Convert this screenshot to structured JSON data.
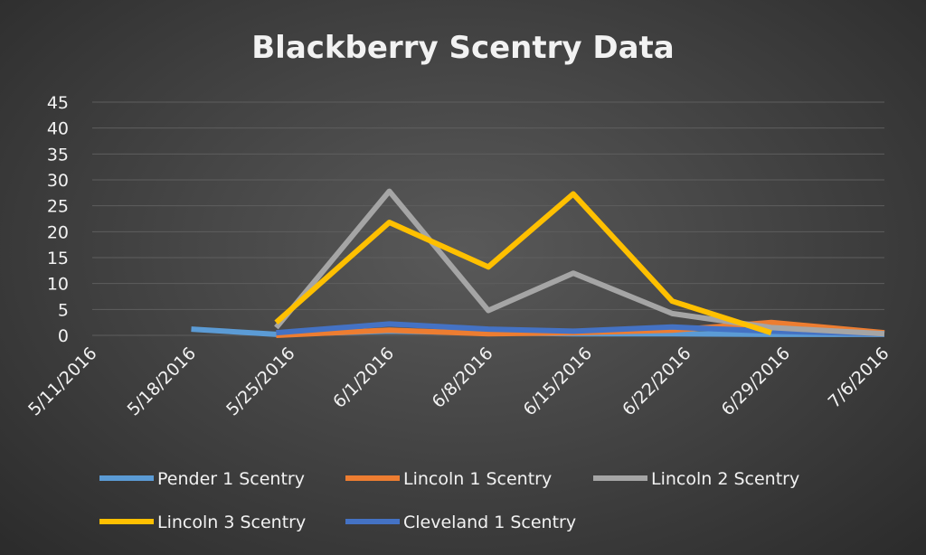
{
  "chart_data": {
    "type": "line",
    "title": "Blackberry Scentry Data",
    "xlabel": "",
    "ylabel": "",
    "ylim": [
      0,
      45
    ],
    "yticks": [
      0,
      5,
      10,
      15,
      20,
      25,
      30,
      35,
      40,
      45
    ],
    "xlim": [
      "2016-05-11",
      "2016-07-06"
    ],
    "xtick_labels": [
      "5/11/2016",
      "5/18/2016",
      "5/25/2016",
      "6/1/2016",
      "6/8/2016",
      "6/15/2016",
      "6/22/2016",
      "6/29/2016",
      "7/6/2016"
    ],
    "grid": true,
    "legend": "bottom",
    "series": [
      {
        "name": "Pender 1 Scentry",
        "color": "#5b9bd5",
        "points": [
          [
            "2016-05-18",
            1.2
          ],
          [
            "2016-05-24",
            0.2
          ],
          [
            "2016-06-01",
            0.8
          ],
          [
            "2016-06-08",
            0.5
          ],
          [
            "2016-06-14",
            0.3
          ],
          [
            "2016-06-21",
            0.3
          ],
          [
            "2016-06-28",
            0.2
          ],
          [
            "2016-07-06",
            0.2
          ]
        ]
      },
      {
        "name": "Lincoln 1 Scentry",
        "color": "#ed7d31",
        "points": [
          [
            "2016-05-24",
            0.0
          ],
          [
            "2016-06-01",
            1.0
          ],
          [
            "2016-06-08",
            0.3
          ],
          [
            "2016-06-14",
            0.5
          ],
          [
            "2016-06-21",
            1.0
          ],
          [
            "2016-06-28",
            2.5
          ],
          [
            "2016-07-06",
            0.5
          ]
        ]
      },
      {
        "name": "Lincoln 2 Scentry",
        "color": "#a5a5a5",
        "points": [
          [
            "2016-05-24",
            1.5
          ],
          [
            "2016-06-01",
            27.8
          ],
          [
            "2016-06-08",
            4.8
          ],
          [
            "2016-06-14",
            12.0
          ],
          [
            "2016-06-21",
            4.2
          ],
          [
            "2016-06-28",
            1.5
          ],
          [
            "2016-07-06",
            0.3
          ]
        ]
      },
      {
        "name": "Lincoln 3 Scentry",
        "color": "#ffc000",
        "points": [
          [
            "2016-05-24",
            2.5
          ],
          [
            "2016-06-01",
            21.8
          ],
          [
            "2016-06-08",
            13.2
          ],
          [
            "2016-06-14",
            27.3
          ],
          [
            "2016-06-21",
            6.6
          ],
          [
            "2016-06-28",
            0.5
          ]
        ]
      },
      {
        "name": "Cleveland 1 Scentry",
        "color": "#4472c4",
        "points": [
          [
            "2016-05-24",
            0.5
          ],
          [
            "2016-06-01",
            2.2
          ],
          [
            "2016-06-08",
            1.2
          ],
          [
            "2016-06-14",
            0.8
          ],
          [
            "2016-06-21",
            1.6
          ],
          [
            "2016-06-28",
            0.8
          ],
          [
            "2016-07-06",
            0.3
          ]
        ]
      }
    ]
  }
}
